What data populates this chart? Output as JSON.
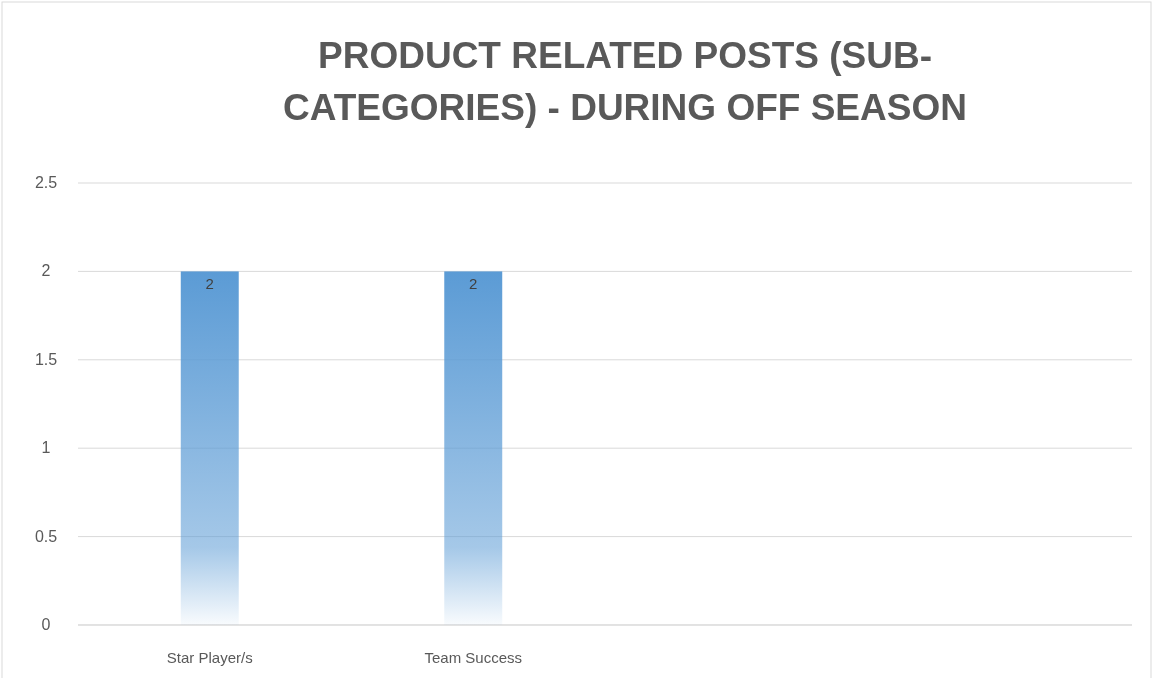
{
  "chart_data": {
    "type": "bar",
    "title": "PRODUCT RELATED POSTS (SUB-CATEGORIES) - DURING OFF SEASON",
    "categories": [
      "Star Player/s",
      "Team Success",
      null,
      null
    ],
    "values": [
      2,
      2,
      null,
      null
    ],
    "color": "#5b9bd5",
    "ylim": [
      0,
      2.5
    ],
    "yticks": [
      0,
      0.5,
      1,
      1.5,
      2,
      2.5
    ],
    "grid": "y",
    "data_labels": true
  }
}
